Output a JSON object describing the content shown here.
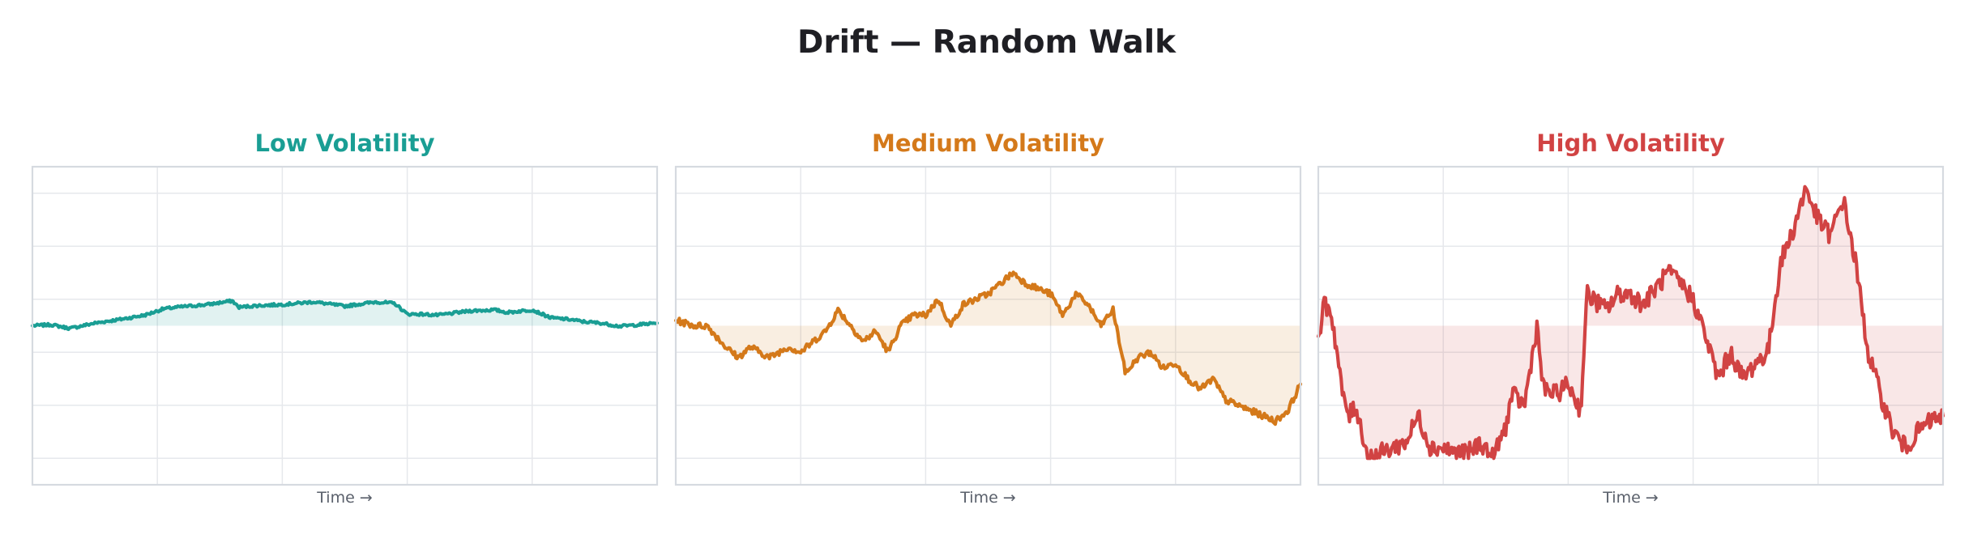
{
  "title": "Drift — Random Walk",
  "chart_data": [
    {
      "type": "line",
      "title": "Low Volatility",
      "xlabel": "Time →",
      "ylabel": "",
      "color": "#1a9e94",
      "fill_color": "#1a9e94",
      "fill_to": 0,
      "ylim": [
        -3.0,
        3.0
      ],
      "yticks_gridlines": [
        -2.5,
        -1.5,
        -0.5,
        0.5,
        1.5,
        2.5
      ],
      "xgrid_count": 4,
      "grid": true,
      "x": [
        0.0,
        0.03,
        0.06,
        0.1,
        0.14,
        0.18,
        0.21,
        0.24,
        0.28,
        0.32,
        0.33,
        0.36,
        0.4,
        0.45,
        0.5,
        0.55,
        0.58,
        0.6,
        0.62,
        0.65,
        0.7,
        0.74,
        0.76,
        0.8,
        0.83,
        0.86,
        0.88,
        0.91,
        0.94,
        0.97,
        1.0
      ],
      "values": [
        0.0,
        0.02,
        -0.05,
        0.05,
        0.12,
        0.2,
        0.32,
        0.36,
        0.4,
        0.47,
        0.35,
        0.38,
        0.4,
        0.45,
        0.37,
        0.45,
        0.42,
        0.22,
        0.22,
        0.2,
        0.28,
        0.3,
        0.25,
        0.3,
        0.15,
        0.12,
        0.08,
        0.05,
        -0.01,
        0.02,
        0.05
      ]
    },
    {
      "type": "line",
      "title": "Medium Volatility",
      "xlabel": "Time →",
      "ylabel": "",
      "color": "#d4791a",
      "fill_color": "#d4791a",
      "fill_to": 0,
      "ylim": [
        -3.0,
        3.0
      ],
      "yticks_gridlines": [
        -2.5,
        -1.5,
        -0.5,
        0.5,
        1.5,
        2.5
      ],
      "xgrid_count": 4,
      "grid": true,
      "x": [
        0.0,
        0.03,
        0.05,
        0.08,
        0.1,
        0.12,
        0.15,
        0.18,
        0.2,
        0.22,
        0.24,
        0.26,
        0.28,
        0.3,
        0.32,
        0.34,
        0.36,
        0.38,
        0.4,
        0.42,
        0.44,
        0.46,
        0.48,
        0.5,
        0.52,
        0.54,
        0.56,
        0.58,
        0.6,
        0.62,
        0.64,
        0.66,
        0.68,
        0.7,
        0.72,
        0.74,
        0.76,
        0.78,
        0.8,
        0.82,
        0.84,
        0.86,
        0.88,
        0.9,
        0.92,
        0.94,
        0.96,
        0.98,
        1.0
      ],
      "values": [
        0.1,
        0.0,
        0.0,
        -0.4,
        -0.6,
        -0.4,
        -0.6,
        -0.4,
        -0.5,
        -0.3,
        -0.1,
        0.3,
        0.0,
        -0.3,
        -0.1,
        -0.5,
        0.0,
        0.2,
        0.2,
        0.5,
        0.0,
        0.4,
        0.5,
        0.6,
        0.8,
        1.0,
        0.8,
        0.7,
        0.6,
        0.2,
        0.6,
        0.4,
        0.0,
        0.3,
        -0.9,
        -0.6,
        -0.5,
        -0.8,
        -0.7,
        -1.0,
        -1.2,
        -1.0,
        -1.4,
        -1.5,
        -1.6,
        -1.7,
        -1.8,
        -1.6,
        -1.1
      ]
    },
    {
      "type": "line",
      "title": "High Volatility",
      "xlabel": "Time →",
      "ylabel": "",
      "color": "#d14343",
      "fill_color": "#d14343",
      "fill_to": 0,
      "ylim": [
        -3.0,
        3.0
      ],
      "yticks_gridlines": [
        -2.5,
        -1.5,
        -0.5,
        0.5,
        1.5,
        2.5
      ],
      "xgrid_count": 4,
      "grid": true,
      "x": [
        0.0,
        0.01,
        0.02,
        0.03,
        0.04,
        0.05,
        0.06,
        0.08,
        0.1,
        0.12,
        0.14,
        0.16,
        0.18,
        0.2,
        0.22,
        0.24,
        0.26,
        0.28,
        0.3,
        0.31,
        0.33,
        0.35,
        0.36,
        0.38,
        0.4,
        0.42,
        0.43,
        0.44,
        0.46,
        0.48,
        0.5,
        0.52,
        0.54,
        0.56,
        0.58,
        0.6,
        0.62,
        0.64,
        0.66,
        0.68,
        0.7,
        0.72,
        0.74,
        0.76,
        0.77,
        0.78,
        0.8,
        0.82,
        0.84,
        0.86,
        0.88,
        0.9,
        0.92,
        0.94,
        0.96,
        0.98,
        1.0
      ],
      "values": [
        -0.2,
        0.4,
        0.3,
        -0.5,
        -1.4,
        -1.7,
        -1.5,
        -2.5,
        -2.4,
        -2.3,
        -2.2,
        -1.7,
        -2.3,
        -2.3,
        -2.4,
        -2.4,
        -2.2,
        -2.5,
        -1.9,
        -1.3,
        -1.5,
        0.0,
        -1.2,
        -1.3,
        -1.1,
        -1.6,
        0.6,
        0.5,
        0.3,
        0.6,
        0.6,
        0.4,
        0.7,
        1.0,
        0.8,
        0.5,
        -0.2,
        -1.0,
        -0.5,
        -1.0,
        -0.7,
        -0.5,
        1.2,
        1.8,
        2.2,
        2.6,
        2.0,
        1.7,
        2.4,
        1.2,
        -0.5,
        -1.3,
        -2.0,
        -2.3,
        -2.0,
        -1.8,
        -1.7
      ]
    }
  ],
  "panels": [
    {
      "title": "Low Volatility",
      "xlabel": "Time →"
    },
    {
      "title": "Medium Volatility",
      "xlabel": "Time →"
    },
    {
      "title": "High Volatility",
      "xlabel": "Time →"
    }
  ]
}
